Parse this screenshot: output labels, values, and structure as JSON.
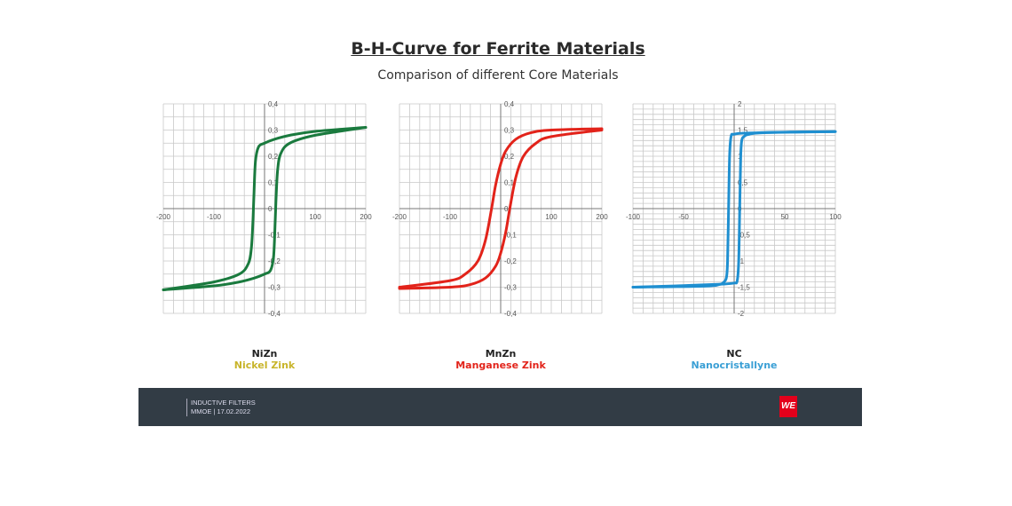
{
  "slide": {
    "title": "B-H-Curve for Ferrite Materials",
    "subtitle": "Comparison of different Core Materials",
    "footer": {
      "line1": "INDUCTIVE FILTERS",
      "line2": "MMOE | 17.02.2022",
      "logo": "WE",
      "bg_color": "#323c45",
      "logo_color": "#e3001b"
    }
  },
  "chart_data": [
    {
      "type": "line",
      "name": "NiZn",
      "subtitle": "Nickel Zink",
      "color": "#1a7a3e",
      "label_color": "#c8b42a",
      "xlim": [
        -200,
        200
      ],
      "ylim": [
        -0.4,
        0.4
      ],
      "grid": true,
      "xticks": [
        -200,
        -100,
        0,
        100,
        200
      ],
      "yticks": [
        -0.4,
        -0.3,
        -0.2,
        -0.1,
        0,
        0.1,
        0.2,
        0.3,
        0.4
      ],
      "xtick_labels": [
        "-200",
        "-100",
        "0",
        "100",
        "200"
      ],
      "ytick_labels": [
        "-0,4",
        "-0,3",
        "-0,2",
        "-0,1",
        "0",
        "0,1",
        "0,2",
        "0,3",
        "0,4"
      ],
      "branches": [
        {
          "x": [
            200,
            100,
            50,
            20,
            0,
            -12,
            -18,
            -21,
            -23,
            -26,
            -32,
            -50,
            -100,
            -200
          ],
          "y": [
            0.31,
            0.295,
            0.28,
            0.265,
            0.25,
            0.235,
            0.18,
            0.05,
            -0.05,
            -0.15,
            -0.21,
            -0.25,
            -0.28,
            -0.31
          ]
        },
        {
          "x": [
            -200,
            -100,
            -50,
            -20,
            0,
            12,
            18,
            21,
            23,
            26,
            32,
            50,
            100,
            200
          ],
          "y": [
            -0.31,
            -0.295,
            -0.28,
            -0.265,
            -0.25,
            -0.235,
            -0.18,
            -0.05,
            0.05,
            0.15,
            0.21,
            0.25,
            0.28,
            0.31
          ]
        }
      ]
    },
    {
      "type": "line",
      "name": "MnZn",
      "subtitle": "Manganese Zink",
      "color": "#e2231a",
      "label_color": "#e2231a",
      "xlim": [
        -200,
        200
      ],
      "ylim": [
        -0.4,
        0.4
      ],
      "grid": true,
      "xticks": [
        -200,
        -100,
        0,
        100,
        200
      ],
      "yticks": [
        -0.4,
        -0.3,
        -0.2,
        -0.1,
        0,
        0.1,
        0.2,
        0.3,
        0.4
      ],
      "xtick_labels": [
        "-200",
        "-100",
        "0",
        "100",
        "200"
      ],
      "ytick_labels": [
        "-0,4",
        "-0,3",
        "-0,2",
        "-0,1",
        "0",
        "0,1",
        "0,2",
        "0,3",
        "0,4"
      ],
      "branches": [
        {
          "x": [
            200,
            100,
            60,
            30,
            10,
            0,
            -10,
            -18,
            -30,
            -45,
            -70,
            -100,
            -200
          ],
          "y": [
            0.305,
            0.3,
            0.29,
            0.265,
            0.22,
            0.17,
            0.09,
            0,
            -0.12,
            -0.2,
            -0.25,
            -0.275,
            -0.3
          ]
        },
        {
          "x": [
            -200,
            -100,
            -60,
            -30,
            -10,
            0,
            10,
            18,
            30,
            45,
            70,
            100,
            200
          ],
          "y": [
            -0.305,
            -0.3,
            -0.29,
            -0.265,
            -0.22,
            -0.17,
            -0.09,
            0,
            0.12,
            0.2,
            0.25,
            0.275,
            0.3
          ]
        }
      ]
    },
    {
      "type": "line",
      "name": "NC",
      "subtitle": "Nanocristallyne",
      "color": "#1f8fd0",
      "label_color": "#3a9fd5",
      "xlim": [
        -100,
        100
      ],
      "ylim": [
        -2,
        2
      ],
      "grid": true,
      "xticks": [
        -100,
        -50,
        0,
        50,
        100
      ],
      "yticks": [
        -2,
        -1.5,
        -1,
        -0.5,
        0,
        0.5,
        1,
        1.5,
        2
      ],
      "xtick_labels": [
        "-100",
        "-50",
        "0",
        "50",
        "100"
      ],
      "ytick_labels": [
        "-2",
        "-1,5",
        "-1",
        "-0,5",
        "0",
        "0,5",
        "1",
        "1,5",
        "2"
      ],
      "branches": [
        {
          "x": [
            100,
            50,
            10,
            0,
            -3,
            -4.5,
            -5.5,
            -6.5,
            -7.5,
            -10,
            -15,
            -30,
            -100
          ],
          "y": [
            1.47,
            1.46,
            1.44,
            1.42,
            1.38,
            1.0,
            0,
            -1.0,
            -1.3,
            -1.4,
            -1.45,
            -1.48,
            -1.5
          ]
        },
        {
          "x": [
            -100,
            -50,
            -10,
            0,
            3,
            4.5,
            5.5,
            6.5,
            7.5,
            10,
            15,
            30,
            100
          ],
          "y": [
            -1.5,
            -1.47,
            -1.44,
            -1.42,
            -1.38,
            -1.0,
            0,
            1.0,
            1.3,
            1.38,
            1.42,
            1.45,
            1.47
          ]
        }
      ]
    }
  ]
}
